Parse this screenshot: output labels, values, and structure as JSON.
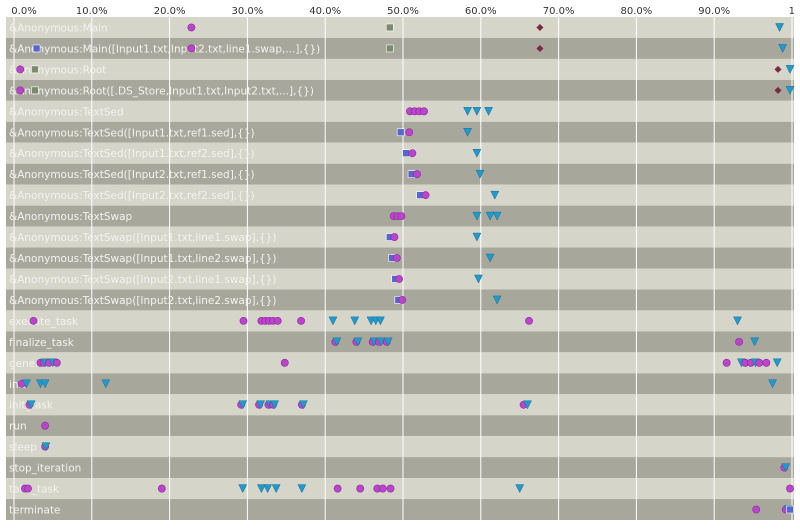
{
  "chart_data": {
    "type": "scatter",
    "x_unit": "fraction of run",
    "xlim": [
      0,
      1
    ],
    "x_ticks": [
      {
        "v": 0.0,
        "label": "0.0%"
      },
      {
        "v": 0.1,
        "label": "10.0%"
      },
      {
        "v": 0.2,
        "label": "20.0%"
      },
      {
        "v": 0.3,
        "label": "30.0%"
      },
      {
        "v": 0.4,
        "label": "40.0%"
      },
      {
        "v": 0.5,
        "label": "50.0%"
      },
      {
        "v": 0.6,
        "label": "60.0%"
      },
      {
        "v": 0.7,
        "label": "70.0%"
      },
      {
        "v": 0.8,
        "label": "80.0%"
      },
      {
        "v": 0.9,
        "label": "90.0%"
      },
      {
        "v": 1.0,
        "label": "1"
      }
    ],
    "grid": true,
    "colors": {
      "row_light": "#d6d5c9",
      "row_dark": "#a8a79c",
      "grid": "#ffffff",
      "label": "#f3f3ee",
      "circle": "#bb44cc",
      "triangle": "#2299cc",
      "square_gray": "#7a8a6a",
      "square_blue": "#5566cc",
      "diamond": "#7a2a44",
      "axis_text": "#333333"
    },
    "rows": [
      {
        "label": "&Anonymous:Main",
        "events": [
          [
            0.228,
            "circle"
          ],
          [
            0.483,
            "square_gray"
          ],
          [
            0.676,
            "diamond"
          ],
          [
            0.984,
            "triangle"
          ]
        ]
      },
      {
        "label": "&Anonymous:Main([Input1.txt,Input2.txt,line1.swap,...],{})",
        "events": [
          [
            0.029,
            "square_blue"
          ],
          [
            0.228,
            "circle"
          ],
          [
            0.483,
            "square_gray"
          ],
          [
            0.676,
            "diamond"
          ],
          [
            0.988,
            "triangle"
          ]
        ]
      },
      {
        "label": "&Anonymous:Root",
        "events": [
          [
            0.008,
            "circle"
          ],
          [
            0.027,
            "square_gray"
          ],
          [
            0.982,
            "diamond"
          ],
          [
            1.0,
            "triangle"
          ]
        ]
      },
      {
        "label": "&Anonymous:Root([.DS_Store,Input1.txt,Input2.txt,...],{})",
        "events": [
          [
            0.008,
            "circle"
          ],
          [
            0.027,
            "square_gray"
          ],
          [
            0.982,
            "diamond"
          ],
          [
            1.0,
            "triangle"
          ]
        ]
      },
      {
        "label": "&Anonymous:TextSed",
        "events": [
          [
            0.509,
            "circle"
          ],
          [
            0.515,
            "circle"
          ],
          [
            0.521,
            "circle"
          ],
          [
            0.527,
            "circle"
          ],
          [
            0.583,
            "triangle"
          ],
          [
            0.595,
            "triangle"
          ],
          [
            0.61,
            "triangle"
          ]
        ]
      },
      {
        "label": "&Anonymous:TextSed([Input1.txt,ref1.sed],{})",
        "events": [
          [
            0.497,
            "square_blue"
          ],
          [
            0.508,
            "circle"
          ],
          [
            0.583,
            "triangle"
          ]
        ]
      },
      {
        "label": "&Anonymous:TextSed([Input1.txt,ref2.sed],{})",
        "events": [
          [
            0.504,
            "square_blue"
          ],
          [
            0.512,
            "circle"
          ],
          [
            0.595,
            "triangle"
          ]
        ]
      },
      {
        "label": "&Anonymous:TextSed([Input2.txt,ref1.sed],{})",
        "events": [
          [
            0.511,
            "square_blue"
          ],
          [
            0.518,
            "circle"
          ],
          [
            0.599,
            "triangle"
          ]
        ]
      },
      {
        "label": "&Anonymous:TextSed([Input2.txt,ref2.sed],{})",
        "events": [
          [
            0.522,
            "square_blue"
          ],
          [
            0.529,
            "circle"
          ],
          [
            0.618,
            "triangle"
          ]
        ]
      },
      {
        "label": "&Anonymous:TextSwap",
        "events": [
          [
            0.488,
            "circle"
          ],
          [
            0.493,
            "circle"
          ],
          [
            0.498,
            "circle"
          ],
          [
            0.595,
            "triangle"
          ],
          [
            0.612,
            "triangle"
          ],
          [
            0.621,
            "triangle"
          ]
        ]
      },
      {
        "label": "&Anonymous:TextSwap([Input1.txt,line1.swap],{})",
        "events": [
          [
            0.483,
            "square_blue"
          ],
          [
            0.489,
            "circle"
          ],
          [
            0.595,
            "triangle"
          ]
        ]
      },
      {
        "label": "&Anonymous:TextSwap([Input1.txt,line2.swap],{})",
        "events": [
          [
            0.486,
            "square_blue"
          ],
          [
            0.492,
            "circle"
          ],
          [
            0.612,
            "triangle"
          ]
        ]
      },
      {
        "label": "&Anonymous:TextSwap([Input2.txt,line1.swap],{})",
        "events": [
          [
            0.49,
            "square_blue"
          ],
          [
            0.495,
            "circle"
          ],
          [
            0.597,
            "triangle"
          ]
        ]
      },
      {
        "label": "&Anonymous:TextSwap([Input2.txt,line2.swap],{})",
        "events": [
          [
            0.494,
            "square_blue"
          ],
          [
            0.499,
            "circle"
          ],
          [
            0.621,
            "triangle"
          ]
        ]
      },
      {
        "label": "execute_task",
        "events": [
          [
            0.025,
            "circle"
          ],
          [
            0.295,
            "circle"
          ],
          [
            0.318,
            "circle"
          ],
          [
            0.323,
            "circle"
          ],
          [
            0.328,
            "circle"
          ],
          [
            0.333,
            "circle"
          ],
          [
            0.339,
            "circle"
          ],
          [
            0.369,
            "circle"
          ],
          [
            0.41,
            "triangle"
          ],
          [
            0.438,
            "triangle"
          ],
          [
            0.459,
            "triangle"
          ],
          [
            0.465,
            "triangle"
          ],
          [
            0.471,
            "triangle"
          ],
          [
            0.662,
            "circle"
          ],
          [
            0.93,
            "triangle"
          ]
        ]
      },
      {
        "label": "finalize_task",
        "events": [
          [
            0.413,
            "circle"
          ],
          [
            0.415,
            "triangle"
          ],
          [
            0.44,
            "circle"
          ],
          [
            0.442,
            "triangle"
          ],
          [
            0.461,
            "circle"
          ],
          [
            0.463,
            "triangle"
          ],
          [
            0.469,
            "circle"
          ],
          [
            0.472,
            "triangle"
          ],
          [
            0.479,
            "circle"
          ],
          [
            0.481,
            "triangle"
          ],
          [
            0.932,
            "circle"
          ],
          [
            0.952,
            "triangle"
          ]
        ]
      },
      {
        "label": "generate",
        "events": [
          [
            0.034,
            "circle"
          ],
          [
            0.038,
            "circle"
          ],
          [
            0.04,
            "triangle"
          ],
          [
            0.045,
            "circle"
          ],
          [
            0.05,
            "triangle"
          ],
          [
            0.055,
            "circle"
          ],
          [
            0.348,
            "circle"
          ],
          [
            0.916,
            "circle"
          ],
          [
            0.935,
            "triangle"
          ],
          [
            0.94,
            "circle"
          ],
          [
            0.947,
            "circle"
          ],
          [
            0.953,
            "triangle"
          ],
          [
            0.958,
            "circle"
          ],
          [
            0.967,
            "circle"
          ],
          [
            0.981,
            "triangle"
          ]
        ]
      },
      {
        "label": "init",
        "events": [
          [
            0.01,
            "circle"
          ],
          [
            0.016,
            "triangle"
          ],
          [
            0.034,
            "triangle"
          ],
          [
            0.04,
            "triangle"
          ],
          [
            0.118,
            "triangle"
          ],
          [
            0.975,
            "triangle"
          ]
        ]
      },
      {
        "label": "init_task",
        "events": [
          [
            0.02,
            "circle"
          ],
          [
            0.022,
            "triangle"
          ],
          [
            0.292,
            "circle"
          ],
          [
            0.294,
            "triangle"
          ],
          [
            0.315,
            "circle"
          ],
          [
            0.317,
            "triangle"
          ],
          [
            0.327,
            "circle"
          ],
          [
            0.329,
            "triangle"
          ],
          [
            0.333,
            "circle"
          ],
          [
            0.335,
            "triangle"
          ],
          [
            0.37,
            "circle"
          ],
          [
            0.372,
            "triangle"
          ],
          [
            0.655,
            "circle"
          ],
          [
            0.66,
            "triangle"
          ]
        ]
      },
      {
        "label": "run",
        "events": [
          [
            0.04,
            "circle"
          ]
        ]
      },
      {
        "label": "sleep",
        "events": [
          [
            0.04,
            "circle"
          ],
          [
            0.041,
            "triangle"
          ]
        ]
      },
      {
        "label": "stop_iteration",
        "events": [
          [
            0.99,
            "circle"
          ],
          [
            0.992,
            "triangle"
          ]
        ]
      },
      {
        "label": "take_task",
        "events": [
          [
            0.014,
            "circle"
          ],
          [
            0.018,
            "circle"
          ],
          [
            0.19,
            "circle"
          ],
          [
            0.294,
            "triangle"
          ],
          [
            0.318,
            "triangle"
          ],
          [
            0.326,
            "triangle"
          ],
          [
            0.337,
            "triangle"
          ],
          [
            0.37,
            "triangle"
          ],
          [
            0.416,
            "circle"
          ],
          [
            0.445,
            "circle"
          ],
          [
            0.467,
            "circle"
          ],
          [
            0.474,
            "circle"
          ],
          [
            0.484,
            "circle"
          ],
          [
            0.65,
            "triangle"
          ],
          [
            1.0,
            "circle"
          ]
        ]
      },
      {
        "label": "terminate",
        "events": [
          [
            0.954,
            "circle"
          ],
          [
            0.992,
            "circle"
          ],
          [
            0.995,
            "triangle"
          ],
          [
            1.0,
            "square_blue"
          ]
        ]
      }
    ]
  }
}
